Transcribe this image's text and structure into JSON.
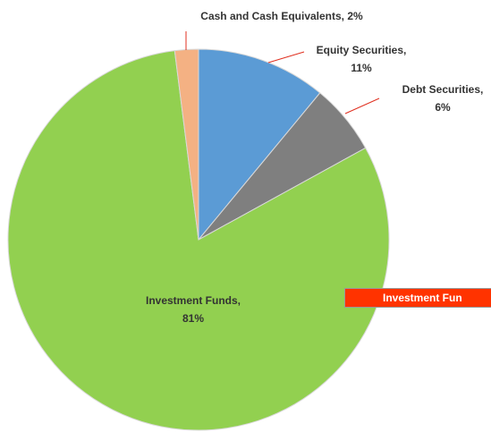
{
  "chart_data": {
    "type": "pie",
    "categories": [
      "Equity Securities",
      "Debt Securities",
      "Investment Funds",
      "Cash and Cash Equivalents"
    ],
    "values": [
      11,
      6,
      81,
      2
    ],
    "value_labels": [
      "Equity Securities, 11%",
      "Debt Securities, 6%",
      "Investment Funds, 81%",
      "Cash and Cash Equivalents, 2%"
    ],
    "colors": [
      "#5b9bd5",
      "#7f7f7f",
      "#92d050",
      "#f4b183"
    ],
    "callout": "Investment Fun"
  }
}
